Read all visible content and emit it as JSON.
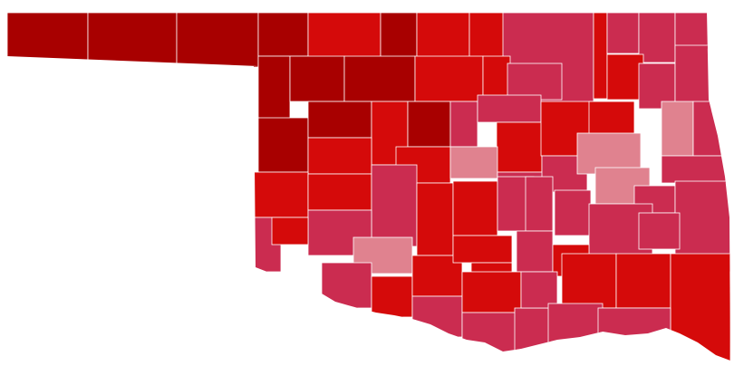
{
  "map": {
    "colors": [
      "#a80000",
      "#d50a0a",
      "#cb2c50",
      "#e0828f"
    ],
    "border_color": "#ffffff"
  }
}
